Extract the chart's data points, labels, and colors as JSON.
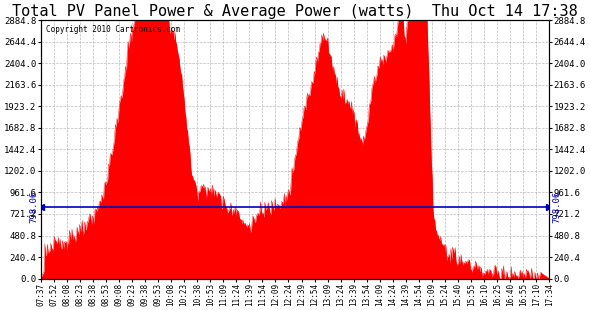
{
  "title": "Total PV Panel Power & Average Power (watts)  Thu Oct 14 17:38",
  "copyright": "Copyright 2010 Cartronics.com",
  "avg_power": 798.06,
  "ylim": [
    0.0,
    2884.8
  ],
  "yticks": [
    0.0,
    240.4,
    480.8,
    721.2,
    961.6,
    1202.0,
    1442.4,
    1682.8,
    1923.2,
    2163.6,
    2404.0,
    2644.4,
    2884.8
  ],
  "fill_color": "#FF0000",
  "avg_line_color": "#0000BB",
  "background_color": "#FFFFFF",
  "grid_color": "#AAAAAA",
  "title_fontsize": 11,
  "x_labels": [
    "07:37",
    "07:52",
    "08:08",
    "08:23",
    "08:38",
    "08:53",
    "09:08",
    "09:23",
    "09:38",
    "09:53",
    "10:08",
    "10:23",
    "10:38",
    "10:53",
    "11:09",
    "11:24",
    "11:39",
    "11:54",
    "12:09",
    "12:24",
    "12:39",
    "12:54",
    "13:09",
    "13:24",
    "13:39",
    "13:54",
    "14:09",
    "14:24",
    "14:39",
    "14:54",
    "15:09",
    "15:24",
    "15:40",
    "15:55",
    "16:10",
    "16:25",
    "16:40",
    "16:55",
    "17:10",
    "17:34"
  ]
}
